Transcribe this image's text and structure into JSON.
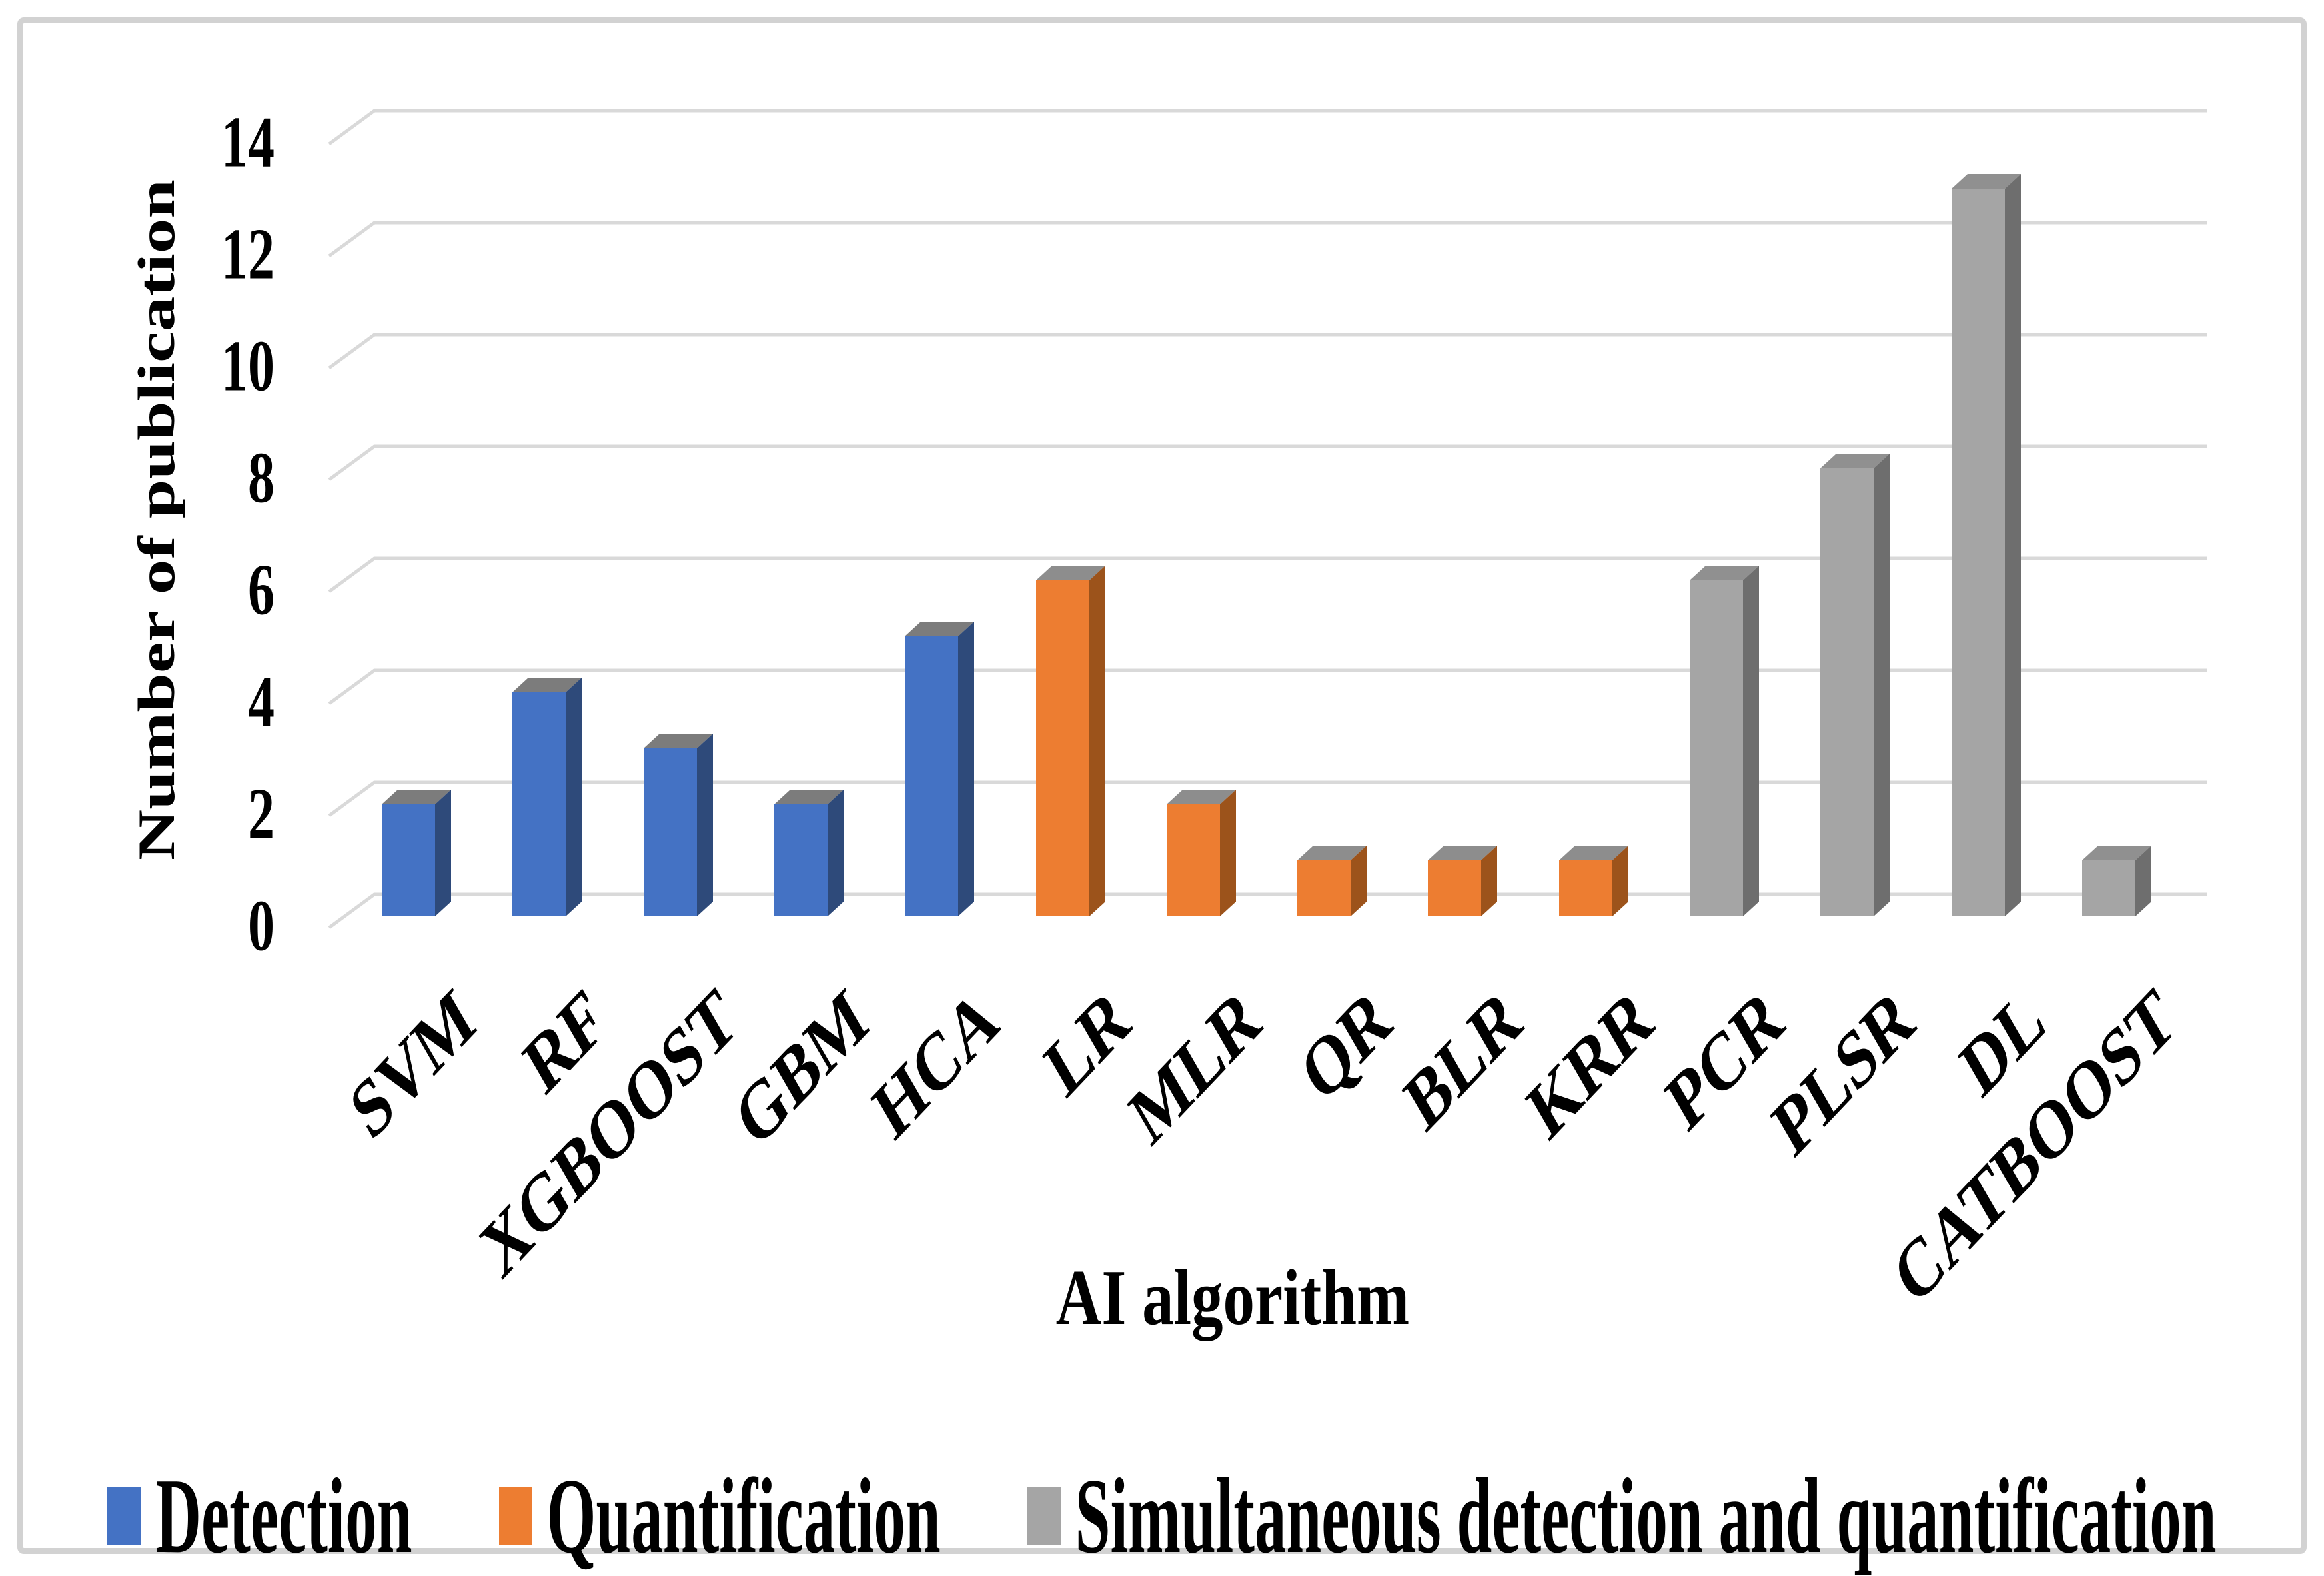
{
  "figure": {
    "background": "#FFFFFF",
    "border_color": "#D2D2D2",
    "grid_color": "#D9D9D9",
    "text_color": "#000000"
  },
  "chart_data": {
    "type": "bar",
    "projection": "3d-column",
    "title": "",
    "xlabel": "AI algorithm",
    "ylabel": "Number of publication",
    "ylim": [
      0,
      14
    ],
    "yticks": [
      0,
      2,
      4,
      6,
      8,
      10,
      12,
      14
    ],
    "grid": true,
    "legend_position": "bottom",
    "categories": [
      "SVM",
      "RF",
      "XGBOOST",
      "GBM",
      "HCA",
      "LR",
      "MLR",
      "QR",
      "BLR",
      "KRR",
      "PCR",
      "PLSR",
      "DL",
      "CATBOOST"
    ],
    "series": [
      {
        "name": "Detection",
        "color": "#4472C4",
        "side_color": "#2E4A7A",
        "top_color": "#7C7C7C",
        "values": [
          2,
          4,
          3,
          2,
          5,
          null,
          null,
          null,
          null,
          null,
          null,
          null,
          null,
          null
        ]
      },
      {
        "name": "Quantification",
        "color": "#ED7D31",
        "side_color": "#9C531B",
        "top_color": "#8D8D8D",
        "values": [
          null,
          null,
          null,
          null,
          null,
          6,
          2,
          1,
          1,
          1,
          null,
          null,
          null,
          null
        ]
      },
      {
        "name": "Simultaneous detection and quantification",
        "color": "#A5A5A5",
        "side_color": "#6E6E6E",
        "top_color": "#909090",
        "values": [
          null,
          null,
          null,
          null,
          null,
          null,
          null,
          null,
          null,
          null,
          6,
          8,
          13,
          1
        ]
      }
    ]
  }
}
